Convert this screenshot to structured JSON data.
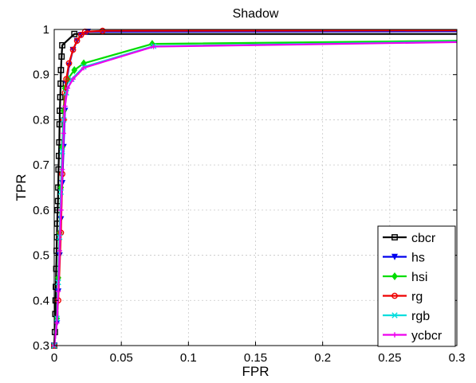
{
  "chart_data": {
    "type": "line",
    "title": "Shadow",
    "xlabel": "FPR",
    "ylabel": "TPR",
    "xlim": [
      0,
      0.3
    ],
    "ylim": [
      0.3,
      1.0
    ],
    "xticks": [
      0,
      0.05,
      0.1,
      0.15,
      0.2,
      0.25,
      0.3
    ],
    "xtick_labels": [
      "0",
      "0.05",
      "0.1",
      "0.15",
      "0.2",
      "0.25",
      "0.3"
    ],
    "yticks": [
      0.3,
      0.4,
      0.5,
      0.6,
      0.7,
      0.8,
      0.9,
      1.0
    ],
    "ytick_labels": [
      "0.3",
      "0.4",
      "0.5",
      "0.6",
      "0.7",
      "0.8",
      "0.9",
      "1"
    ],
    "grid": true,
    "legend_position": "bottom-right",
    "series": [
      {
        "name": "cbcr",
        "color": "#000000",
        "marker": "square",
        "points": [
          [
            0.0,
            0.3
          ],
          [
            0.0005,
            0.33
          ],
          [
            0.0008,
            0.37
          ],
          [
            0.001,
            0.4
          ],
          [
            0.0012,
            0.43
          ],
          [
            0.0015,
            0.47
          ],
          [
            0.0018,
            0.51
          ],
          [
            0.002,
            0.54
          ],
          [
            0.0022,
            0.57
          ],
          [
            0.0025,
            0.6
          ],
          [
            0.0028,
            0.62
          ],
          [
            0.003,
            0.65
          ],
          [
            0.0032,
            0.69
          ],
          [
            0.0035,
            0.72
          ],
          [
            0.0038,
            0.75
          ],
          [
            0.004,
            0.79
          ],
          [
            0.0042,
            0.82
          ],
          [
            0.0045,
            0.85
          ],
          [
            0.0048,
            0.88
          ],
          [
            0.005,
            0.91
          ],
          [
            0.0055,
            0.94
          ],
          [
            0.006,
            0.965
          ],
          [
            0.015,
            0.99
          ],
          [
            0.3,
            0.99
          ]
        ]
      },
      {
        "name": "hs",
        "color": "#0000ee",
        "marker": "triangle-down",
        "points": [
          [
            0.0,
            0.3
          ],
          [
            0.002,
            0.35
          ],
          [
            0.003,
            0.42
          ],
          [
            0.004,
            0.5
          ],
          [
            0.005,
            0.58
          ],
          [
            0.006,
            0.66
          ],
          [
            0.007,
            0.74
          ],
          [
            0.008,
            0.82
          ],
          [
            0.009,
            0.88
          ],
          [
            0.011,
            0.92
          ],
          [
            0.014,
            0.955
          ],
          [
            0.017,
            0.975
          ],
          [
            0.02,
            0.988
          ],
          [
            0.025,
            0.995
          ],
          [
            0.3,
            0.996
          ]
        ]
      },
      {
        "name": "hsi",
        "color": "#00dd00",
        "marker": "diamond",
        "points": [
          [
            0.0,
            0.3
          ],
          [
            0.002,
            0.36
          ],
          [
            0.003,
            0.45
          ],
          [
            0.004,
            0.55
          ],
          [
            0.005,
            0.65
          ],
          [
            0.006,
            0.74
          ],
          [
            0.007,
            0.82
          ],
          [
            0.008,
            0.87
          ],
          [
            0.01,
            0.89
          ],
          [
            0.015,
            0.91
          ],
          [
            0.022,
            0.925
          ],
          [
            0.073,
            0.968
          ],
          [
            0.3,
            0.975
          ]
        ]
      },
      {
        "name": "rg",
        "color": "#ee0000",
        "marker": "circle",
        "points": [
          [
            0.0,
            0.3
          ],
          [
            0.003,
            0.4
          ],
          [
            0.005,
            0.55
          ],
          [
            0.006,
            0.68
          ],
          [
            0.007,
            0.8
          ],
          [
            0.008,
            0.86
          ],
          [
            0.009,
            0.89
          ],
          [
            0.011,
            0.925
          ],
          [
            0.014,
            0.955
          ],
          [
            0.017,
            0.975
          ],
          [
            0.02,
            0.988
          ],
          [
            0.023,
            0.995
          ],
          [
            0.036,
            0.997
          ],
          [
            0.3,
            0.998
          ]
        ]
      },
      {
        "name": "rgb",
        "color": "#00dddd",
        "marker": "x",
        "points": [
          [
            0.0,
            0.3
          ],
          [
            0.002,
            0.36
          ],
          [
            0.003,
            0.44
          ],
          [
            0.004,
            0.54
          ],
          [
            0.005,
            0.64
          ],
          [
            0.006,
            0.73
          ],
          [
            0.007,
            0.8
          ],
          [
            0.009,
            0.86
          ],
          [
            0.013,
            0.89
          ],
          [
            0.022,
            0.917
          ],
          [
            0.074,
            0.963
          ],
          [
            0.3,
            0.973
          ]
        ]
      },
      {
        "name": "ycbcr",
        "color": "#ee00ee",
        "marker": "plus",
        "points": [
          [
            0.0,
            0.3
          ],
          [
            0.002,
            0.35
          ],
          [
            0.003,
            0.42
          ],
          [
            0.004,
            0.51
          ],
          [
            0.005,
            0.6
          ],
          [
            0.006,
            0.69
          ],
          [
            0.007,
            0.77
          ],
          [
            0.008,
            0.83
          ],
          [
            0.01,
            0.87
          ],
          [
            0.014,
            0.89
          ],
          [
            0.022,
            0.915
          ],
          [
            0.074,
            0.962
          ],
          [
            0.3,
            0.972
          ]
        ]
      }
    ]
  }
}
